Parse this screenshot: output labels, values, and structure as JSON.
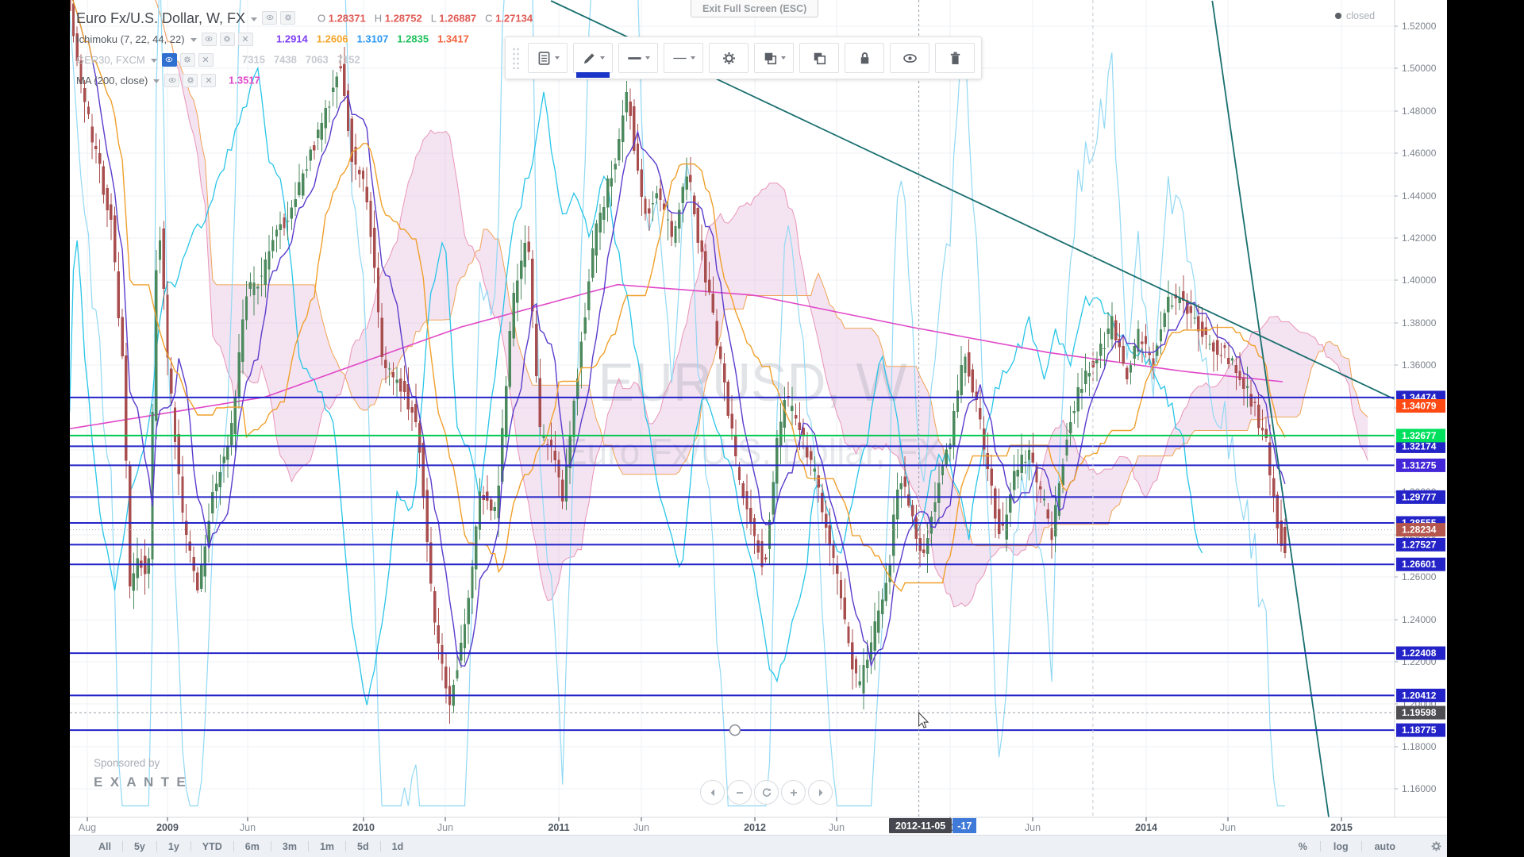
{
  "window": {
    "exit_fullscreen_tooltip": "Exit Full Screen (ESC)",
    "market_status": "closed"
  },
  "legend": {
    "title": "Euro Fx/U.S. Dollar, W, FX",
    "ohlc": [
      {
        "label": "O",
        "value": "1.28371"
      },
      {
        "label": "H",
        "value": "1.28752"
      },
      {
        "label": "L",
        "value": "1.26887"
      },
      {
        "label": "C",
        "value": "1.27134"
      }
    ],
    "ohlc_color": "#e05a54",
    "indicators": [
      {
        "name": "Ichimoku (7, 22, 44, 22)",
        "hidden": false,
        "values": [
          {
            "text": "1.2914",
            "color": "#7e3ff2"
          },
          {
            "text": "1.2606",
            "color": "#f7a62b"
          },
          {
            "text": "1.3107",
            "color": "#2a97f3"
          },
          {
            "text": "1.2835",
            "color": "#21c15e"
          },
          {
            "text": "1.3417",
            "color": "#f2633d"
          }
        ]
      },
      {
        "name": "GER30, FXCM",
        "hidden": true,
        "values": [
          {
            "text": "7315",
            "color": "#c6c9ce"
          },
          {
            "text": "7438",
            "color": "#c6c9ce"
          },
          {
            "text": "7063",
            "color": "#c6c9ce"
          },
          {
            "text": "7152",
            "color": "#c6c9ce"
          }
        ]
      },
      {
        "name": "MA (200, close)",
        "hidden": false,
        "values": [
          {
            "text": "1.3517",
            "color": "#e048c8"
          }
        ]
      }
    ]
  },
  "drawing_toolbar": {
    "buttons": [
      {
        "name": "template",
        "icon": "document",
        "dropdown": true,
        "active": false
      },
      {
        "name": "line-color",
        "icon": "pencil",
        "dropdown": true,
        "active": true,
        "swatch": "#1a35c8"
      },
      {
        "name": "line-width",
        "icon": "line-thick",
        "dropdown": true,
        "active": false
      },
      {
        "name": "line-style",
        "icon": "line-thin",
        "dropdown": true,
        "active": false
      },
      {
        "name": "settings",
        "icon": "gear",
        "dropdown": false,
        "active": false
      },
      {
        "name": "order",
        "icon": "layers",
        "dropdown": true,
        "active": false
      },
      {
        "name": "clone",
        "icon": "clone",
        "dropdown": false,
        "active": false
      },
      {
        "name": "lock",
        "icon": "lock",
        "dropdown": false,
        "active": false
      },
      {
        "name": "hide",
        "icon": "eye",
        "dropdown": false,
        "active": false
      },
      {
        "name": "remove",
        "icon": "trash",
        "dropdown": false,
        "active": false
      }
    ]
  },
  "bottom_bar": {
    "ranges": [
      "All",
      "5y",
      "1y",
      "YTD",
      "6m",
      "3m",
      "1m",
      "5d",
      "1d"
    ],
    "scale_options": [
      "%",
      "log",
      "auto"
    ]
  },
  "sponsor": {
    "prefix": "Sponsored by",
    "name": "EXANTE"
  },
  "chart_data": {
    "type": "candlestick",
    "symbol": "EURUSD",
    "interval": "W",
    "watermark_line1": "EURUSD, W",
    "watermark_line2": "Euro Fx/U.S. Dollar, FX",
    "y_axis": {
      "min": 1.16,
      "max": 1.52,
      "step": 0.02,
      "decimals": 5
    },
    "x_axis_labels": [
      {
        "text": "Aug",
        "t": 2008.59,
        "minor": true
      },
      {
        "text": "2009",
        "t": 2009.0,
        "minor": false
      },
      {
        "text": "Jun",
        "t": 2009.41,
        "minor": true
      },
      {
        "text": "2010",
        "t": 2010.0,
        "minor": false
      },
      {
        "text": "Jun",
        "t": 2010.42,
        "minor": true
      },
      {
        "text": "2011",
        "t": 2011.0,
        "minor": false
      },
      {
        "text": "Jun",
        "t": 2011.42,
        "minor": true
      },
      {
        "text": "2012",
        "t": 2012.0,
        "minor": false
      },
      {
        "text": "Jun",
        "t": 2012.42,
        "minor": true
      },
      {
        "text": "2013",
        "t": 2013.0,
        "minor": false
      },
      {
        "text": "Jun",
        "t": 2013.42,
        "minor": true
      },
      {
        "text": "2014",
        "t": 2014.0,
        "minor": false
      },
      {
        "text": "Jun",
        "t": 2014.42,
        "minor": true
      },
      {
        "text": "2015",
        "t": 2015.0,
        "minor": false
      }
    ],
    "price_levels": [
      {
        "price": 1.34474,
        "color": "#2323c8",
        "selected": false
      },
      {
        "price": 1.32677,
        "color": "#00c853",
        "selected": false
      },
      {
        "price": 1.32174,
        "color": "#2323c8",
        "selected": false
      },
      {
        "price": 1.31275,
        "color": "#2323c8",
        "selected": false
      },
      {
        "price": 1.29777,
        "color": "#2323c8",
        "selected": false
      },
      {
        "price": 1.28555,
        "color": "#2323c8",
        "selected": false
      },
      {
        "price": 1.27527,
        "color": "#2323c8",
        "selected": false
      },
      {
        "price": 1.26601,
        "color": "#2323c8",
        "selected": false
      },
      {
        "price": 1.22408,
        "color": "#2323c8",
        "selected": false
      },
      {
        "price": 1.20412,
        "color": "#2323c8",
        "selected": false
      },
      {
        "price": 1.18775,
        "color": "#2323c8",
        "selected": true,
        "handle_t": 2011.9
      }
    ],
    "axis_labels": [
      {
        "text": "1.34474",
        "price": 1.34474,
        "bg": "#2323c8"
      },
      {
        "text": "1.34079",
        "price": 1.34079,
        "bg": "#ff4a14"
      },
      {
        "text": "1.32174",
        "price": 1.32174,
        "bg": "#2323c8"
      },
      {
        "text": "1.32677",
        "price": 1.32677,
        "bg": "#00e05d"
      },
      {
        "text": "1.31275",
        "price": 1.31275,
        "bg": "#4326d8"
      },
      {
        "text": "1.29777",
        "price": 1.29777,
        "bg": "#2323c8"
      },
      {
        "text": "1.28555",
        "price": 1.28555,
        "bg": "#2323c8"
      },
      {
        "text": "1.28234",
        "price": 1.28234,
        "bg": "#b4564d"
      },
      {
        "text": "1.27527",
        "price": 1.27527,
        "bg": "#2323c8"
      },
      {
        "text": "1.26601",
        "price": 1.26601,
        "bg": "#2323c8"
      },
      {
        "text": "1.22408",
        "price": 1.22408,
        "bg": "#2323c8"
      },
      {
        "text": "1.20412",
        "price": 1.20412,
        "bg": "#2323c8"
      },
      {
        "text": "1.18775",
        "price": 1.18775,
        "bg": "#2323c8"
      },
      {
        "text": "1.19598",
        "price": 1.19598,
        "bg": "#4d4d52"
      }
    ],
    "current_price": {
      "price": 1.28234,
      "text": "1.28234"
    },
    "crosshair": {
      "t": 2012.84,
      "price": 1.19598,
      "price_label": "1.19598",
      "date_label": "2012-11-05",
      "covered_label_fragment": "-17"
    },
    "vertical_dashed_lines": [
      {
        "t": 2013.73
      }
    ],
    "trend_lines": [
      {
        "t1": 2010.96,
        "p1": 1.532,
        "t2": 2015.27,
        "p2": 1.344,
        "color": "#1a6f6f"
      },
      {
        "t1": 2014.34,
        "p1": 1.532,
        "t2": 2014.95,
        "p2": 1.137,
        "color": "#1a6f6f"
      }
    ],
    "last_candle": {
      "open": 1.28371,
      "high": 1.28752,
      "low": 1.26887,
      "close": 1.27134
    },
    "weeks": 324,
    "t_start": 2008.5,
    "price_path_anchors": [
      [
        2008.5,
        1.545
      ],
      [
        2008.56,
        1.5
      ],
      [
        2008.65,
        1.46
      ],
      [
        2008.73,
        1.43
      ],
      [
        2008.8,
        1.35
      ],
      [
        2008.82,
        1.25
      ],
      [
        2008.88,
        1.27
      ],
      [
        2008.92,
        1.255
      ],
      [
        2008.97,
        1.44
      ],
      [
        2009.02,
        1.36
      ],
      [
        2009.1,
        1.285
      ],
      [
        2009.18,
        1.255
      ],
      [
        2009.25,
        1.3
      ],
      [
        2009.35,
        1.33
      ],
      [
        2009.42,
        1.395
      ],
      [
        2009.5,
        1.4
      ],
      [
        2009.58,
        1.425
      ],
      [
        2009.65,
        1.43
      ],
      [
        2009.75,
        1.46
      ],
      [
        2009.83,
        1.48
      ],
      [
        2009.9,
        1.505
      ],
      [
        2009.96,
        1.46
      ],
      [
        2010.04,
        1.44
      ],
      [
        2010.12,
        1.36
      ],
      [
        2010.22,
        1.35
      ],
      [
        2010.3,
        1.33
      ],
      [
        2010.38,
        1.24
      ],
      [
        2010.46,
        1.197
      ],
      [
        2010.54,
        1.24
      ],
      [
        2010.62,
        1.3
      ],
      [
        2010.7,
        1.29
      ],
      [
        2010.78,
        1.39
      ],
      [
        2010.86,
        1.42
      ],
      [
        2010.92,
        1.33
      ],
      [
        2010.98,
        1.32
      ],
      [
        2011.04,
        1.295
      ],
      [
        2011.12,
        1.36
      ],
      [
        2011.2,
        1.42
      ],
      [
        2011.3,
        1.455
      ],
      [
        2011.37,
        1.49
      ],
      [
        2011.45,
        1.43
      ],
      [
        2011.52,
        1.44
      ],
      [
        2011.6,
        1.42
      ],
      [
        2011.68,
        1.45
      ],
      [
        2011.75,
        1.41
      ],
      [
        2011.83,
        1.37
      ],
      [
        2011.88,
        1.34
      ],
      [
        2011.95,
        1.3
      ],
      [
        2012.02,
        1.28
      ],
      [
        2012.07,
        1.265
      ],
      [
        2012.13,
        1.32
      ],
      [
        2012.18,
        1.345
      ],
      [
        2012.25,
        1.33
      ],
      [
        2012.32,
        1.31
      ],
      [
        2012.4,
        1.28
      ],
      [
        2012.48,
        1.24
      ],
      [
        2012.55,
        1.205
      ],
      [
        2012.62,
        1.23
      ],
      [
        2012.7,
        1.26
      ],
      [
        2012.76,
        1.31
      ],
      [
        2012.82,
        1.29
      ],
      [
        2012.88,
        1.27
      ],
      [
        2012.95,
        1.3
      ],
      [
        2013.02,
        1.325
      ],
      [
        2013.09,
        1.365
      ],
      [
        2013.16,
        1.34
      ],
      [
        2013.23,
        1.3
      ],
      [
        2013.28,
        1.277
      ],
      [
        2013.35,
        1.31
      ],
      [
        2013.42,
        1.32
      ],
      [
        2013.48,
        1.3
      ],
      [
        2013.54,
        1.28
      ],
      [
        2013.62,
        1.33
      ],
      [
        2013.7,
        1.355
      ],
      [
        2013.78,
        1.365
      ],
      [
        2013.85,
        1.38
      ],
      [
        2013.92,
        1.355
      ],
      [
        2013.98,
        1.375
      ],
      [
        2014.05,
        1.36
      ],
      [
        2014.12,
        1.39
      ],
      [
        2014.2,
        1.393
      ],
      [
        2014.28,
        1.38
      ],
      [
        2014.35,
        1.37
      ],
      [
        2014.42,
        1.365
      ],
      [
        2014.5,
        1.355
      ],
      [
        2014.57,
        1.34
      ],
      [
        2014.63,
        1.325
      ],
      [
        2014.68,
        1.29
      ],
      [
        2014.72,
        1.272
      ]
    ],
    "ma200_anchors": [
      [
        2008.5,
        1.33
      ],
      [
        2009.5,
        1.345
      ],
      [
        2010.5,
        1.378
      ],
      [
        2011.3,
        1.398
      ],
      [
        2012.0,
        1.393
      ],
      [
        2012.8,
        1.378
      ],
      [
        2013.5,
        1.366
      ],
      [
        2014.2,
        1.357
      ],
      [
        2014.72,
        1.352
      ]
    ],
    "series_colors": {
      "up": "#4c8a5e",
      "down": "#a94e4e",
      "tenkan": "#5b3ccc",
      "kijun": "#f0a02c",
      "senkou_a": "#e895b8",
      "senkou_b": "#efa457",
      "cloud": "rgba(228,186,220,0.40)",
      "chikou": "#29c5e8",
      "aux": "#92d9f4",
      "ma200": "#e048c8"
    }
  }
}
